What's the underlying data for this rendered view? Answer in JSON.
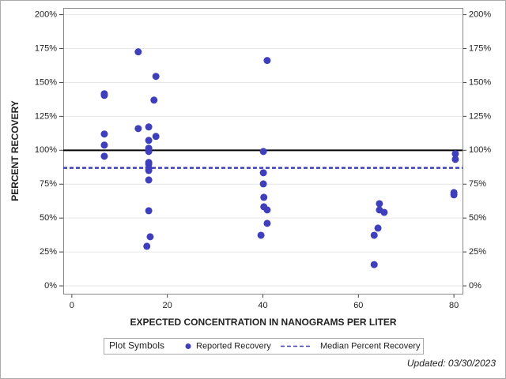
{
  "chart_data": {
    "type": "scatter",
    "xlabel": "EXPECTED CONCENTRATION IN NANOGRAMS PER LITER",
    "ylabel": "PERCENT RECOVERY",
    "x": [
      13.9,
      40.9,
      17.6,
      6.8,
      6.8,
      17.2,
      16.1,
      13.9,
      6.8,
      17.6,
      16.1,
      6.8,
      16.1,
      16.1,
      40.1,
      80.3,
      6.8,
      80.3,
      16.1,
      16.1,
      16.1,
      16.1,
      40.1,
      16.1,
      40.1,
      80.0,
      80.0,
      40.2,
      64.4,
      40.2,
      40.9,
      64.4,
      65.4,
      16.1,
      40.9,
      64.1,
      16.4,
      39.6,
      63.3,
      15.7,
      63.3
    ],
    "series": [
      {
        "name": "Reported Recovery",
        "color": "#3f3fbb",
        "values": [
          172.6,
          166.2,
          154.5,
          141.7,
          140.5,
          137.0,
          117.2,
          116.0,
          112.0,
          110.2,
          107.3,
          103.8,
          101.5,
          99.1,
          99.1,
          97.4,
          95.6,
          93.3,
          91.0,
          89.8,
          86.9,
          85.1,
          83.4,
          78.1,
          75.2,
          68.8,
          67.1,
          65.3,
          60.6,
          58.3,
          56.0,
          56.0,
          54.2,
          55.4,
          46.1,
          42.6,
          36.2,
          37.3,
          37.3,
          29.2,
          15.7
        ]
      }
    ],
    "lines": [
      {
        "name": "Median Percent Recovery",
        "value": 87,
        "color": "#3f3fbb",
        "dashed": true
      }
    ],
    "baseline": 100,
    "xlim": [
      -1.8,
      81.8
    ],
    "ylim": [
      -5.8,
      205
    ],
    "xticks": [
      0,
      20,
      40,
      60,
      80
    ],
    "yticks": [
      {
        "value": 0,
        "label": "0%"
      },
      {
        "value": 25,
        "label": "25%"
      },
      {
        "value": 50,
        "label": "50%"
      },
      {
        "value": 75,
        "label": "75%"
      },
      {
        "value": 100,
        "label": "100%"
      },
      {
        "value": 125,
        "label": "125%"
      },
      {
        "value": 150,
        "label": "150%"
      },
      {
        "value": 175,
        "label": "175%"
      },
      {
        "value": 200,
        "label": "200%"
      }
    ],
    "grid": true,
    "legend_title": "Plot Symbols",
    "footnote": "Updated: 03/30/2023"
  }
}
